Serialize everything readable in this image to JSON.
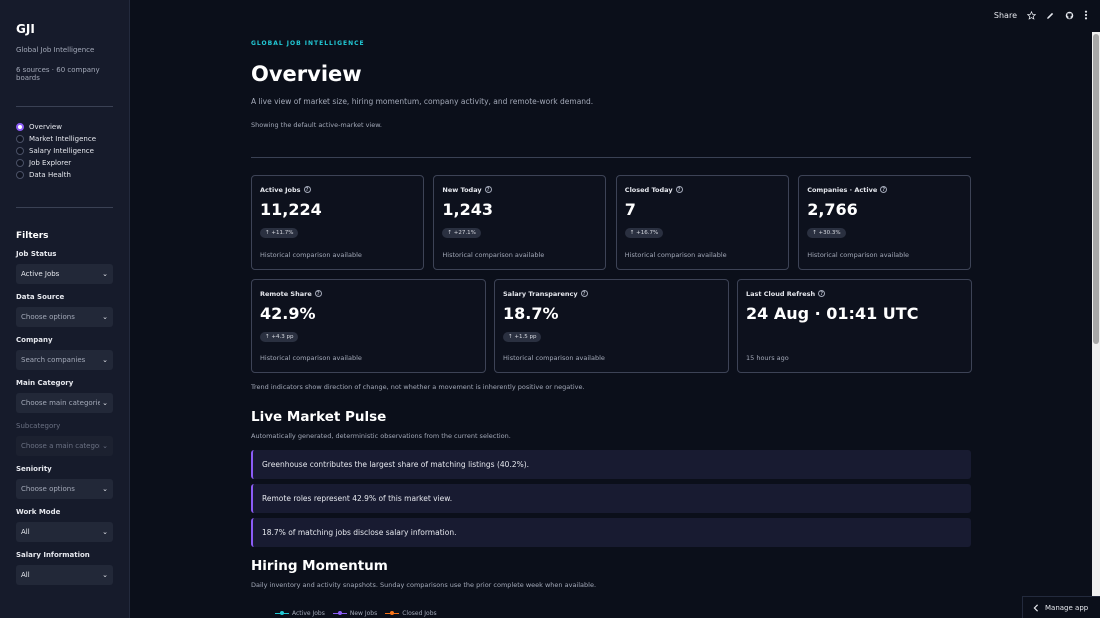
{
  "sidebar": {
    "title": "GJI",
    "subtitle": "Global Job Intelligence",
    "sources": "6 sources · 60 company boards",
    "nav": [
      {
        "label": "Overview",
        "selected": true
      },
      {
        "label": "Market Intelligence",
        "selected": false
      },
      {
        "label": "Salary Intelligence",
        "selected": false
      },
      {
        "label": "Job Explorer",
        "selected": false
      },
      {
        "label": "Data Health",
        "selected": false
      }
    ],
    "filters_title": "Filters",
    "filters": [
      {
        "label": "Job Status",
        "value": "Active Jobs",
        "placeholder": false,
        "disabled": false
      },
      {
        "label": "Data Source",
        "value": "Choose options",
        "placeholder": true,
        "disabled": false
      },
      {
        "label": "Company",
        "value": "Search companies",
        "placeholder": true,
        "disabled": false
      },
      {
        "label": "Main Category",
        "value": "Choose main categories",
        "placeholder": true,
        "disabled": false
      },
      {
        "label": "Subcategory",
        "value": "Choose a main category",
        "placeholder": true,
        "disabled": true
      },
      {
        "label": "Seniority",
        "value": "Choose options",
        "placeholder": true,
        "disabled": false
      },
      {
        "label": "Work Mode",
        "value": "All",
        "placeholder": false,
        "disabled": false
      },
      {
        "label": "Salary Information",
        "value": "All",
        "placeholder": false,
        "disabled": false
      }
    ]
  },
  "toolbar": {
    "share": "Share",
    "icons": [
      "star-icon",
      "pencil-icon",
      "github-icon",
      "more-vertical-icon"
    ]
  },
  "header": {
    "eyebrow": "GLOBAL JOB INTELLIGENCE",
    "title": "Overview",
    "description": "A live view of market size, hiring momentum, company activity, and remote-work demand.",
    "note": "Showing the default active-market view."
  },
  "metrics_row1": [
    {
      "label": "Active Jobs",
      "value": "11,224",
      "delta": "+11.7%",
      "foot": "Historical comparison available"
    },
    {
      "label": "New Today",
      "value": "1,243",
      "delta": "+27.1%",
      "foot": "Historical comparison available"
    },
    {
      "label": "Closed Today",
      "value": "7",
      "delta": "+16.7%",
      "foot": "Historical comparison available"
    },
    {
      "label": "Companies · Active",
      "value": "2,766",
      "delta": "+30.3%",
      "foot": "Historical comparison available"
    }
  ],
  "metrics_row2": [
    {
      "label": "Remote Share",
      "value": "42.9%",
      "delta": "+4.3 pp",
      "foot": "Historical comparison available"
    },
    {
      "label": "Salary Transparency",
      "value": "18.7%",
      "delta": "+1.5 pp",
      "foot": "Historical comparison available"
    },
    {
      "label": "Last Cloud Refresh",
      "value": "24 Aug · 01:41 UTC",
      "delta": null,
      "foot": "15 hours ago"
    }
  ],
  "trend_note": "Trend indicators show direction of change, not whether a movement is inherently positive or negative.",
  "pulse": {
    "title": "Live Market Pulse",
    "subtitle": "Automatically generated, deterministic observations from the current selection.",
    "items": [
      "Greenhouse contributes the largest share of matching listings (40.2%).",
      "Remote roles represent 42.9% of this market view.",
      "18.7% of matching jobs disclose salary information."
    ]
  },
  "momentum": {
    "title": "Hiring Momentum",
    "subtitle": "Daily inventory and activity snapshots. Sunday comparisons use the prior complete week when available.",
    "legend": [
      {
        "name": "Active Jobs",
        "color": "#22c9d6"
      },
      {
        "name": "New Jobs",
        "color": "#8b5cf6"
      },
      {
        "name": "Closed Jobs",
        "color": "#f97316"
      }
    ]
  },
  "manage_app": "Manage app",
  "colors": {
    "accent": "#8b5cf6",
    "eyebrow": "#22c9d6",
    "background": "#0b0f1a"
  }
}
